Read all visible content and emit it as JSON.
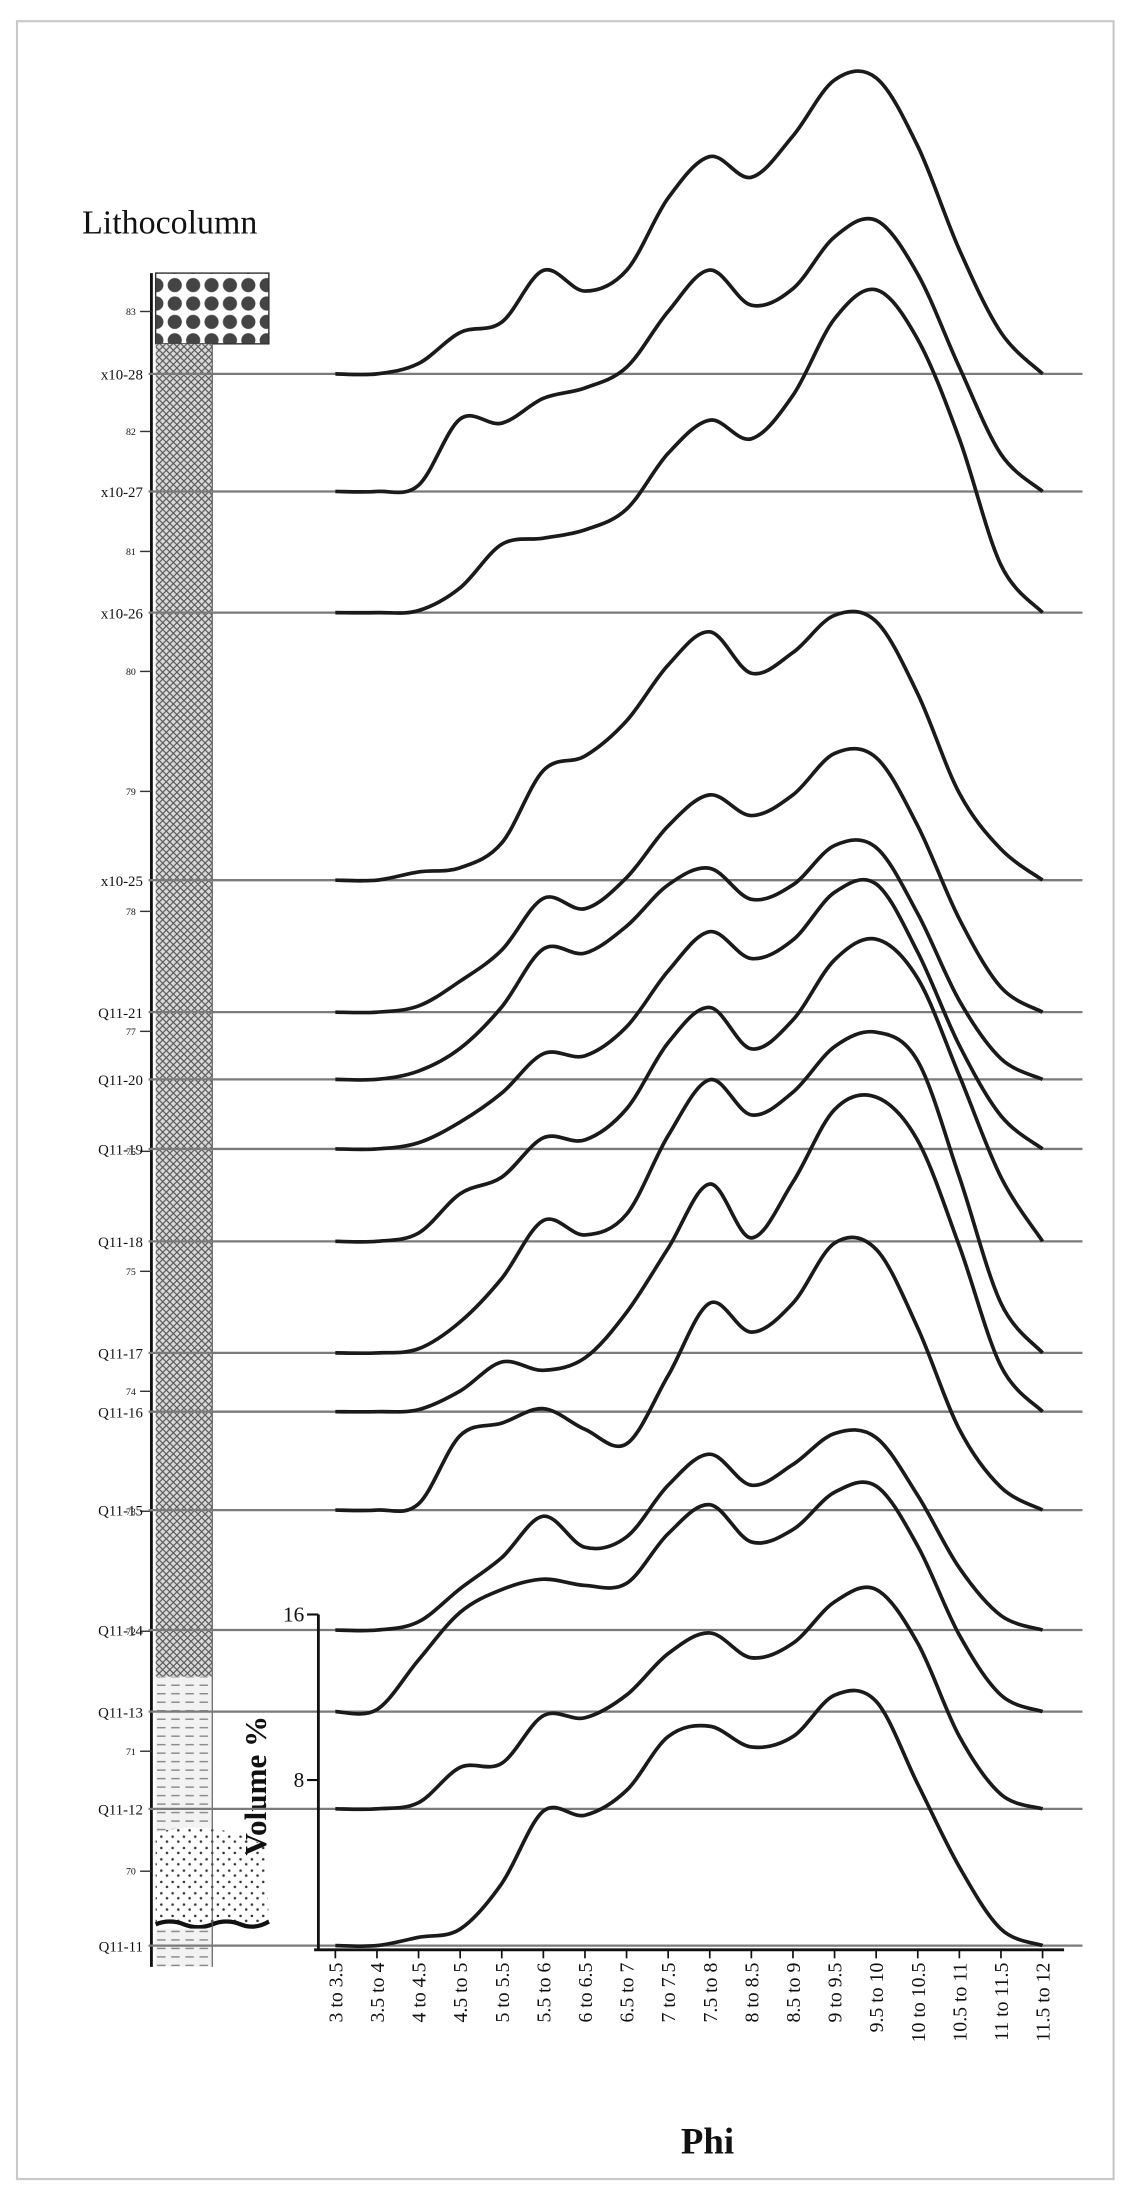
{
  "chart_data": {
    "type": "ridgeline",
    "title": "Lithocolumn",
    "x_label": "Phi",
    "y_label": "Volume %",
    "color": "#1a1a1a",
    "grid": true,
    "categories": [
      "3 to 3.5",
      "3.5 to 4",
      "4 to 4.5",
      "4.5 to 5",
      "5 to 5.5",
      "5.5 to 6",
      "6 to 6.5",
      "6.5 to 7",
      "7 to 7.5",
      "7.5 to 8",
      "8 to 8.5",
      "8.5 to 9",
      "9 to 9.5",
      "9.5 to 10",
      "10 to 10.5",
      "10.5 to 11",
      "11 to 11.5",
      "11.5 to 12"
    ],
    "ylim": [
      0,
      16
    ],
    "yticks": [
      8,
      16
    ],
    "depth_lim": [
      69.38,
      83.32
    ],
    "depth_ticks": [
      70,
      71,
      72,
      73,
      74,
      75,
      76,
      77,
      78,
      79,
      80,
      81,
      82,
      83
    ],
    "series": [
      {
        "name": "x10-28",
        "depth": 82.48,
        "values": [
          0,
          0,
          0.5,
          2,
          2.5,
          5,
          4,
          5,
          8.5,
          10.5,
          9.5,
          11.5,
          14.2,
          14.3,
          11,
          6,
          2,
          0
        ]
      },
      {
        "name": "x10-27",
        "depth": 81.5,
        "values": [
          0,
          0,
          0.3,
          3.5,
          3.3,
          4.5,
          5,
          6,
          8.7,
          10.7,
          9,
          9.8,
          12.3,
          13.1,
          10.5,
          6,
          1.8,
          0
        ]
      },
      {
        "name": "x10-26",
        "depth": 80.49,
        "values": [
          0,
          0,
          0.1,
          1.2,
          3.3,
          3.6,
          4,
          5,
          7.7,
          9.3,
          8.4,
          10.5,
          14.2,
          15.6,
          13.2,
          8.4,
          2.3,
          0
        ]
      },
      {
        "name": "x10-25",
        "depth": 78.26,
        "values": [
          0,
          0,
          0.4,
          0.6,
          1.8,
          5.3,
          6,
          7.7,
          10.4,
          12,
          10,
          11,
          12.8,
          12.5,
          9,
          4.2,
          1.5,
          0
        ]
      },
      {
        "name": "Q11-21",
        "depth": 77.16,
        "values": [
          0,
          0,
          0.3,
          1.5,
          3,
          5.5,
          5,
          6.5,
          9,
          10.5,
          9.5,
          10.5,
          12.5,
          12.3,
          9,
          4.5,
          1.2,
          0
        ]
      },
      {
        "name": "Q11-20",
        "depth": 76.6,
        "values": [
          0,
          0,
          0.4,
          1.5,
          3.5,
          6.3,
          6.1,
          7.4,
          9.4,
          10.2,
          8.7,
          9.4,
          11.3,
          11.2,
          8,
          3.8,
          1,
          0
        ]
      },
      {
        "name": "Q11-19",
        "depth": 76.02,
        "values": [
          0,
          0,
          0.3,
          1.3,
          2.7,
          4.6,
          4.5,
          5.9,
          8.6,
          10.5,
          9.2,
          10.1,
          12.4,
          12.8,
          9.5,
          5,
          1.6,
          0
        ]
      },
      {
        "name": "Q11-18",
        "depth": 75.25,
        "values": [
          0,
          0,
          0.4,
          2.3,
          3.1,
          5,
          4.9,
          6.4,
          9.6,
          11.3,
          9.3,
          10.7,
          13.6,
          14.6,
          12.7,
          8,
          3.1,
          0
        ]
      },
      {
        "name": "Q11-17",
        "depth": 74.32,
        "values": [
          0,
          0,
          0.2,
          1.5,
          3.6,
          6.4,
          5.7,
          6.7,
          10.5,
          13.2,
          11.5,
          12.6,
          14.8,
          15.5,
          14.1,
          8.5,
          2.4,
          0
        ]
      },
      {
        "name": "Q11-16",
        "depth": 73.83,
        "values": [
          0,
          0,
          0.1,
          1,
          2.4,
          2,
          2.6,
          4.8,
          7.9,
          11,
          8.4,
          11.1,
          14.6,
          15.2,
          13.1,
          8,
          2.2,
          0
        ]
      },
      {
        "name": "Q11-15",
        "depth": 73.01,
        "values": [
          0,
          0,
          0.3,
          3.6,
          4.2,
          4.9,
          3.9,
          3.2,
          6.5,
          10,
          8.6,
          10,
          12.9,
          12.6,
          8.8,
          3.9,
          1.1,
          0
        ]
      },
      {
        "name": "Q11-14",
        "depth": 72.01,
        "values": [
          0,
          0,
          0.4,
          2,
          3.5,
          5.5,
          4,
          4.5,
          7,
          8.5,
          7,
          8,
          9.5,
          9.3,
          6.5,
          3,
          0.7,
          0
        ]
      },
      {
        "name": "Q11-13",
        "depth": 71.33,
        "values": [
          0,
          0.1,
          2.5,
          4.8,
          5.9,
          6.4,
          6.1,
          6.2,
          8.6,
          10,
          8.2,
          8.8,
          10.6,
          10.9,
          8,
          3.7,
          0.8,
          0
        ]
      },
      {
        "name": "Q11-12",
        "depth": 70.52,
        "values": [
          0,
          0,
          0.3,
          2,
          2.2,
          4.5,
          4.4,
          5.5,
          7.5,
          8.5,
          7.3,
          8,
          10,
          10.6,
          8,
          3.5,
          0.7,
          0
        ]
      },
      {
        "name": "Q11-11",
        "depth": 69.38,
        "values": [
          0,
          0,
          0.4,
          0.8,
          3,
          6.5,
          6.3,
          7.5,
          10.1,
          10.6,
          9.6,
          10.1,
          12.1,
          11.8,
          7.8,
          3.8,
          0.8,
          0
        ]
      }
    ]
  }
}
